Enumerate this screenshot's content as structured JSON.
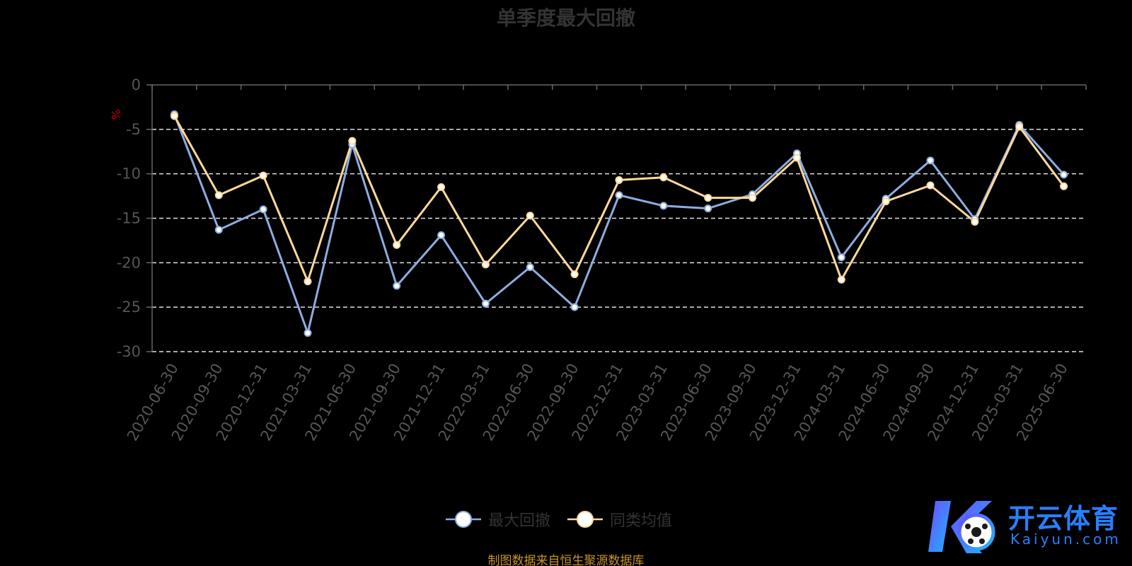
{
  "colors": {
    "series_max_drawdown": "#8eacdf",
    "series_peer_avg": "#ffd99a",
    "axis": "#666666",
    "grid": "#e0e0e0",
    "title": "#333333",
    "ylabel": "#cc0000",
    "source": "#c8922a",
    "watermark": "#2a7fff"
  },
  "legend": {
    "items": [
      {
        "label": "最大回撤",
        "icon": "circle-line-marker-icon"
      },
      {
        "label": "同类均值",
        "icon": "circle-line-marker-icon"
      }
    ]
  },
  "source_note": "制图数据来自恒生聚源数据库",
  "watermark": {
    "cn": "开云体育",
    "en": "Kaiyun.com"
  },
  "chart_data": {
    "type": "line",
    "title": "单季度最大回撤",
    "xlabel": "",
    "ylabel": "%",
    "ylim": [
      -30,
      0
    ],
    "yticks": [
      0,
      -5,
      -10,
      -15,
      -20,
      -25,
      -30
    ],
    "grid": "horizontal-dashed",
    "legend_position": "bottom-center",
    "categories": [
      "2020-06-30",
      "2020-09-30",
      "2020-12-31",
      "2021-03-31",
      "2021-06-30",
      "2021-09-30",
      "2021-12-31",
      "2022-03-31",
      "2022-06-30",
      "2022-09-30",
      "2022-12-31",
      "2023-03-31",
      "2023-06-30",
      "2023-09-30",
      "2023-12-31",
      "2024-03-31",
      "2024-06-30",
      "2024-09-30",
      "2024-12-31",
      "2025-03-31",
      "2025-06-30"
    ],
    "series": [
      {
        "name": "最大回撤",
        "values": [
          -3.3,
          -16.3,
          -14.0,
          -27.9,
          -6.7,
          -22.6,
          -16.9,
          -24.6,
          -20.5,
          -25.0,
          -12.4,
          -13.6,
          -13.9,
          -12.3,
          -7.7,
          -19.4,
          -12.8,
          -8.5,
          -15.1,
          -4.5,
          -10.1
        ]
      },
      {
        "name": "同类均值",
        "values": [
          -3.5,
          -12.4,
          -10.2,
          -22.1,
          -6.3,
          -18.0,
          -11.5,
          -20.2,
          -14.7,
          -21.3,
          -10.7,
          -10.4,
          -12.7,
          -12.7,
          -8.2,
          -21.9,
          -13.1,
          -11.3,
          -15.4,
          -4.7,
          -11.4
        ]
      }
    ]
  }
}
